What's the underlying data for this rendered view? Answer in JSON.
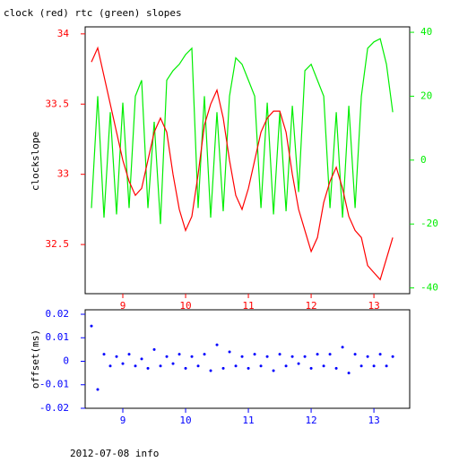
{
  "chart_data": [
    {
      "type": "line",
      "title": "clock (red) rtc (green) slopes",
      "ylabel": "clockslope",
      "x": [
        8.5,
        8.6,
        8.7,
        8.8,
        8.9,
        9.0,
        9.1,
        9.2,
        9.3,
        9.4,
        9.5,
        9.6,
        9.7,
        9.8,
        9.9,
        10.0,
        10.1,
        10.2,
        10.3,
        10.4,
        10.5,
        10.6,
        10.7,
        10.8,
        10.9,
        11.0,
        11.1,
        11.2,
        11.3,
        11.4,
        11.5,
        11.6,
        11.7,
        11.8,
        11.9,
        12.0,
        12.1,
        12.2,
        12.3,
        12.4,
        12.5,
        12.6,
        12.7,
        12.8,
        12.9,
        13.0,
        13.1,
        13.2,
        13.3
      ],
      "series": [
        {
          "name": "clock",
          "color": "#ff0000",
          "values": [
            33.8,
            33.9,
            33.7,
            33.5,
            33.3,
            33.1,
            32.95,
            32.85,
            32.9,
            33.1,
            33.3,
            33.4,
            33.3,
            33.0,
            32.75,
            32.6,
            32.7,
            33.0,
            33.35,
            33.5,
            33.6,
            33.4,
            33.1,
            32.85,
            32.75,
            32.9,
            33.1,
            33.3,
            33.4,
            33.45,
            33.45,
            33.3,
            33.0,
            32.75,
            32.6,
            32.45,
            32.55,
            32.8,
            32.95,
            33.05,
            32.9,
            32.7,
            32.6,
            32.55,
            32.35,
            32.3,
            32.25,
            32.4,
            32.55
          ]
        },
        {
          "name": "rtc",
          "color": "#00ee00",
          "axis": "y2",
          "values": [
            -15,
            20,
            -18,
            15,
            -17,
            18,
            -15,
            20,
            25,
            -15,
            12,
            -20,
            25,
            28,
            30,
            33,
            35,
            -15,
            20,
            -18,
            15,
            -16,
            20,
            32,
            30,
            25,
            20,
            -15,
            18,
            -17,
            15,
            -16,
            17,
            -10,
            28,
            30,
            25,
            20,
            -15,
            15,
            -18,
            17,
            -15,
            20,
            35,
            37,
            38,
            30,
            15
          ]
        }
      ],
      "xlim": [
        8.4,
        13.57
      ],
      "xticks": [
        9,
        10,
        11,
        12,
        13
      ],
      "ylim": [
        32.15,
        34.05
      ],
      "yticks": [
        {
          "value": 34,
          "label": "34"
        },
        33.5,
        33,
        32.5
      ],
      "y2lim": [
        -41.8,
        41.7
      ],
      "y2ticks": [
        40,
        20,
        0,
        -20,
        -40
      ]
    },
    {
      "type": "scatter",
      "ylabel": "offset(ms)",
      "footer": "2012-07-08 info",
      "x": [
        8.5,
        8.6,
        8.7,
        8.8,
        8.9,
        9.0,
        9.1,
        9.2,
        9.3,
        9.4,
        9.5,
        9.6,
        9.7,
        9.8,
        9.9,
        10.0,
        10.1,
        10.2,
        10.3,
        10.4,
        10.5,
        10.6,
        10.7,
        10.8,
        10.9,
        11.0,
        11.1,
        11.2,
        11.3,
        11.4,
        11.5,
        11.6,
        11.7,
        11.8,
        11.9,
        12.0,
        12.1,
        12.2,
        12.3,
        12.4,
        12.5,
        12.6,
        12.7,
        12.8,
        12.9,
        13.0,
        13.1,
        13.2,
        13.3
      ],
      "series": [
        {
          "name": "offset",
          "color": "#0000ff",
          "values": [
            0.015,
            -0.012,
            0.003,
            -0.002,
            0.002,
            -0.001,
            0.003,
            -0.002,
            0.001,
            -0.003,
            0.005,
            -0.002,
            0.002,
            -0.001,
            0.003,
            -0.003,
            0.002,
            -0.002,
            0.003,
            -0.004,
            0.007,
            -0.003,
            0.004,
            -0.002,
            0.002,
            -0.003,
            0.003,
            -0.002,
            0.002,
            -0.004,
            0.003,
            -0.002,
            0.002,
            -0.001,
            0.002,
            -0.003,
            0.003,
            -0.002,
            0.003,
            -0.003,
            0.006,
            -0.005,
            0.003,
            -0.002,
            0.002,
            -0.002,
            0.003,
            -0.002,
            0.002
          ]
        }
      ],
      "xlim": [
        8.4,
        13.57
      ],
      "xticks": [
        9,
        10,
        11,
        12,
        13
      ],
      "ylim": [
        -0.02,
        0.0219
      ],
      "yticks": [
        0.02,
        0.01,
        0,
        -0.01,
        -0.02
      ]
    }
  ]
}
